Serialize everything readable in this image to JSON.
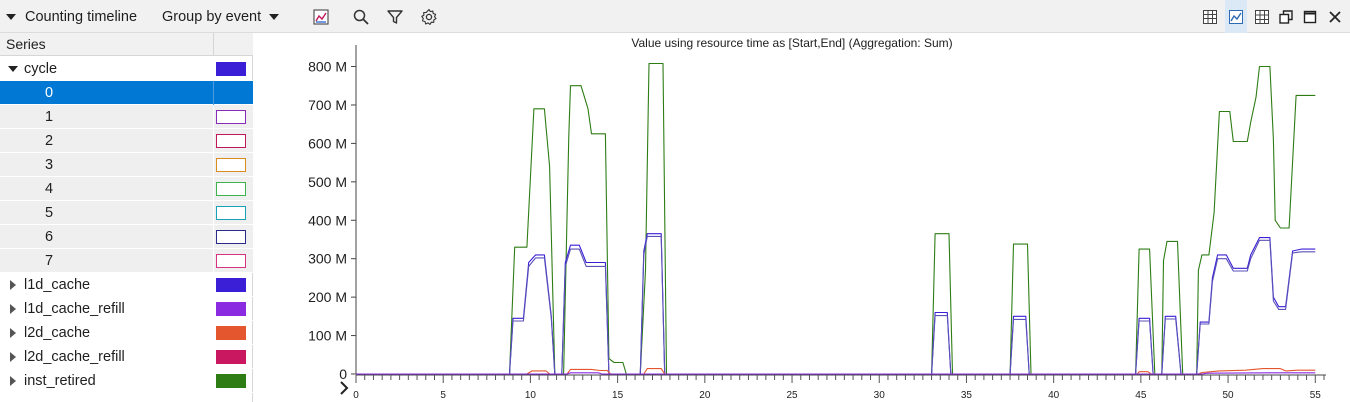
{
  "toolbar": {
    "title": "Counting timeline",
    "group_by": "Group by event",
    "left_icons": [
      "chart-image-icon",
      "search-icon",
      "filter-icon",
      "gear-icon"
    ],
    "right_icons": [
      "table-view-icon",
      "line-view-icon",
      "grid-view-icon",
      "restore-window-icon",
      "maximize-window-icon",
      "close-icon"
    ]
  },
  "series_panel": {
    "header": "Series",
    "rows": [
      {
        "label": "cycle",
        "level": 0,
        "expanded": true,
        "color": "#3a1fd6",
        "style": "filled"
      },
      {
        "label": "0",
        "level": 1,
        "selected": true,
        "color": "#2d56a8",
        "style": "outline"
      },
      {
        "label": "1",
        "level": 1,
        "color": "#8a2bb8",
        "style": "outline"
      },
      {
        "label": "2",
        "level": 1,
        "color": "#c2185b",
        "style": "outline"
      },
      {
        "label": "3",
        "level": 1,
        "color": "#d98c1f",
        "style": "outline"
      },
      {
        "label": "4",
        "level": 1,
        "color": "#3cb44b",
        "style": "outline"
      },
      {
        "label": "5",
        "level": 1,
        "color": "#17a2b8",
        "style": "outline"
      },
      {
        "label": "6",
        "level": 1,
        "color": "#2a2a8c",
        "style": "outline"
      },
      {
        "label": "7",
        "level": 1,
        "color": "#d63384",
        "style": "outline"
      },
      {
        "label": "l1d_cache",
        "level": 0,
        "expanded": false,
        "color": "#3a1fd6",
        "style": "filled"
      },
      {
        "label": "l1d_cache_refill",
        "level": 0,
        "expanded": false,
        "color": "#8a2be2",
        "style": "filled"
      },
      {
        "label": "l2d_cache",
        "level": 0,
        "expanded": false,
        "color": "#e4572e",
        "style": "filled"
      },
      {
        "label": "l2d_cache_refill",
        "level": 0,
        "expanded": false,
        "color": "#c9185f",
        "style": "filled"
      },
      {
        "label": "inst_retired",
        "level": 0,
        "expanded": false,
        "color": "#2e7d14",
        "style": "filled"
      }
    ]
  },
  "chart_data": {
    "type": "line",
    "title": "Value using resource time as [Start,End] (Aggregation: Sum)",
    "xlim": [
      0,
      55.5
    ],
    "ylim": [
      0,
      830000000
    ],
    "xticks": [
      0,
      5,
      10,
      15,
      20,
      25,
      30,
      35,
      40,
      45,
      50,
      55
    ],
    "yticks": [
      0,
      100000000,
      200000000,
      300000000,
      400000000,
      500000000,
      600000000,
      700000000,
      800000000
    ],
    "ytick_labels": [
      "0",
      "100 M",
      "200 M",
      "300 M",
      "400 M",
      "500 M",
      "600 M",
      "700 M",
      "800 M"
    ],
    "series": [
      {
        "color": "#2e7d14",
        "points": [
          [
            0,
            0
          ],
          [
            8.8,
            0
          ],
          [
            9.1,
            330000000
          ],
          [
            9.8,
            330000000
          ],
          [
            10.2,
            690000000
          ],
          [
            10.8,
            690000000
          ],
          [
            11.1,
            540000000
          ],
          [
            11.4,
            0
          ],
          [
            11.9,
            0
          ],
          [
            12.2,
            620000000
          ],
          [
            12.3,
            750000000
          ],
          [
            12.9,
            750000000
          ],
          [
            13.3,
            690000000
          ],
          [
            13.5,
            625000000
          ],
          [
            14.3,
            625000000
          ],
          [
            14.5,
            40000000
          ],
          [
            14.8,
            30000000
          ],
          [
            15.3,
            30000000
          ],
          [
            15.5,
            0
          ],
          [
            16.3,
            0
          ],
          [
            16.6,
            270000000
          ],
          [
            16.8,
            808000000
          ],
          [
            17.6,
            808000000
          ],
          [
            17.8,
            0
          ],
          [
            33.0,
            0
          ],
          [
            33.2,
            365000000
          ],
          [
            34.0,
            365000000
          ],
          [
            34.2,
            0
          ],
          [
            37.5,
            0
          ],
          [
            37.7,
            338000000
          ],
          [
            38.5,
            338000000
          ],
          [
            38.7,
            0
          ],
          [
            44.7,
            0
          ],
          [
            44.9,
            325000000
          ],
          [
            45.5,
            325000000
          ],
          [
            45.8,
            0
          ],
          [
            46.2,
            0
          ],
          [
            46.3,
            295000000
          ],
          [
            46.5,
            345000000
          ],
          [
            47.1,
            345000000
          ],
          [
            47.4,
            0
          ],
          [
            48.2,
            0
          ],
          [
            48.3,
            270000000
          ],
          [
            48.5,
            310000000
          ],
          [
            48.9,
            310000000
          ],
          [
            49.2,
            420000000
          ],
          [
            49.5,
            683000000
          ],
          [
            50.1,
            683000000
          ],
          [
            50.3,
            605000000
          ],
          [
            51.1,
            605000000
          ],
          [
            51.3,
            655000000
          ],
          [
            51.6,
            720000000
          ],
          [
            51.8,
            800000000
          ],
          [
            52.4,
            800000000
          ],
          [
            52.6,
            610000000
          ],
          [
            52.7,
            400000000
          ],
          [
            53.0,
            380000000
          ],
          [
            53.5,
            380000000
          ],
          [
            53.9,
            725000000
          ],
          [
            55.0,
            725000000
          ]
        ]
      },
      {
        "color": "#3a1fd6",
        "points": [
          [
            0,
            0
          ],
          [
            8.8,
            0
          ],
          [
            9.0,
            145000000
          ],
          [
            9.6,
            145000000
          ],
          [
            9.9,
            290000000
          ],
          [
            10.3,
            310000000
          ],
          [
            10.8,
            310000000
          ],
          [
            11.2,
            150000000
          ],
          [
            11.4,
            0
          ],
          [
            11.8,
            0
          ],
          [
            12.0,
            290000000
          ],
          [
            12.3,
            335000000
          ],
          [
            12.8,
            335000000
          ],
          [
            13.2,
            290000000
          ],
          [
            14.3,
            290000000
          ],
          [
            14.5,
            0
          ],
          [
            16.3,
            0
          ],
          [
            16.5,
            320000000
          ],
          [
            16.7,
            365000000
          ],
          [
            17.5,
            365000000
          ],
          [
            17.7,
            0
          ],
          [
            33.0,
            0
          ],
          [
            33.2,
            160000000
          ],
          [
            33.9,
            160000000
          ],
          [
            34.1,
            0
          ],
          [
            37.5,
            0
          ],
          [
            37.7,
            150000000
          ],
          [
            38.4,
            150000000
          ],
          [
            38.6,
            0
          ],
          [
            44.7,
            0
          ],
          [
            44.9,
            145000000
          ],
          [
            45.5,
            145000000
          ],
          [
            45.7,
            0
          ],
          [
            46.2,
            0
          ],
          [
            46.4,
            150000000
          ],
          [
            47.0,
            150000000
          ],
          [
            47.3,
            0
          ],
          [
            48.2,
            0
          ],
          [
            48.4,
            135000000
          ],
          [
            48.9,
            135000000
          ],
          [
            49.1,
            250000000
          ],
          [
            49.4,
            310000000
          ],
          [
            49.9,
            310000000
          ],
          [
            50.3,
            275000000
          ],
          [
            51.1,
            275000000
          ],
          [
            51.3,
            310000000
          ],
          [
            51.8,
            355000000
          ],
          [
            52.4,
            355000000
          ],
          [
            52.6,
            200000000
          ],
          [
            52.9,
            175000000
          ],
          [
            53.3,
            175000000
          ],
          [
            53.7,
            320000000
          ],
          [
            54.2,
            325000000
          ],
          [
            55.0,
            325000000
          ]
        ]
      },
      {
        "color": "#5a52b8",
        "points": [
          [
            0,
            0
          ],
          [
            8.8,
            0
          ],
          [
            9.0,
            138000000
          ],
          [
            9.6,
            138000000
          ],
          [
            9.9,
            280000000
          ],
          [
            10.3,
            302000000
          ],
          [
            10.8,
            302000000
          ],
          [
            11.2,
            145000000
          ],
          [
            11.4,
            0
          ],
          [
            11.8,
            0
          ],
          [
            12.0,
            280000000
          ],
          [
            12.3,
            325000000
          ],
          [
            12.8,
            325000000
          ],
          [
            13.2,
            280000000
          ],
          [
            14.3,
            280000000
          ],
          [
            14.5,
            0
          ],
          [
            16.3,
            0
          ],
          [
            16.5,
            310000000
          ],
          [
            16.7,
            358000000
          ],
          [
            17.5,
            358000000
          ],
          [
            17.7,
            0
          ],
          [
            33.0,
            0
          ],
          [
            33.2,
            152000000
          ],
          [
            33.9,
            152000000
          ],
          [
            34.1,
            0
          ],
          [
            37.5,
            0
          ],
          [
            37.7,
            142000000
          ],
          [
            38.4,
            142000000
          ],
          [
            38.6,
            0
          ],
          [
            44.7,
            0
          ],
          [
            44.9,
            138000000
          ],
          [
            45.5,
            138000000
          ],
          [
            45.7,
            0
          ],
          [
            46.2,
            0
          ],
          [
            46.4,
            143000000
          ],
          [
            47.0,
            143000000
          ],
          [
            47.3,
            0
          ],
          [
            48.2,
            0
          ],
          [
            48.4,
            130000000
          ],
          [
            48.9,
            130000000
          ],
          [
            49.1,
            240000000
          ],
          [
            49.4,
            300000000
          ],
          [
            49.9,
            300000000
          ],
          [
            50.3,
            268000000
          ],
          [
            51.1,
            268000000
          ],
          [
            51.3,
            300000000
          ],
          [
            51.8,
            348000000
          ],
          [
            52.4,
            348000000
          ],
          [
            52.6,
            190000000
          ],
          [
            52.9,
            168000000
          ],
          [
            53.3,
            168000000
          ],
          [
            53.7,
            315000000
          ],
          [
            54.2,
            318000000
          ],
          [
            55.0,
            318000000
          ]
        ]
      },
      {
        "color": "#e4572e",
        "points": [
          [
            0,
            0
          ],
          [
            9.8,
            0
          ],
          [
            10.1,
            8000000
          ],
          [
            10.9,
            8000000
          ],
          [
            11.1,
            0
          ],
          [
            12.1,
            0
          ],
          [
            12.3,
            12000000
          ],
          [
            13.5,
            12000000
          ],
          [
            14.0,
            9000000
          ],
          [
            14.4,
            9000000
          ],
          [
            14.6,
            0
          ],
          [
            16.5,
            0
          ],
          [
            16.7,
            14000000
          ],
          [
            17.5,
            14000000
          ],
          [
            17.7,
            0
          ],
          [
            44.8,
            0
          ],
          [
            44.9,
            6000000
          ],
          [
            45.4,
            6000000
          ],
          [
            45.6,
            0
          ],
          [
            48.3,
            0
          ],
          [
            48.5,
            4000000
          ],
          [
            49.5,
            8000000
          ],
          [
            51.0,
            10000000
          ],
          [
            52.0,
            14000000
          ],
          [
            53.0,
            14000000
          ],
          [
            53.3,
            8000000
          ],
          [
            54.0,
            10000000
          ],
          [
            55.0,
            10000000
          ]
        ]
      },
      {
        "color": "#8a2be2",
        "points": [
          [
            0,
            0
          ],
          [
            12.1,
            0
          ],
          [
            12.3,
            3000000
          ],
          [
            13.9,
            3000000
          ],
          [
            14.1,
            0
          ],
          [
            48.5,
            0
          ],
          [
            48.8,
            2000000
          ],
          [
            53.0,
            3000000
          ],
          [
            55.0,
            3000000
          ]
        ]
      }
    ]
  }
}
